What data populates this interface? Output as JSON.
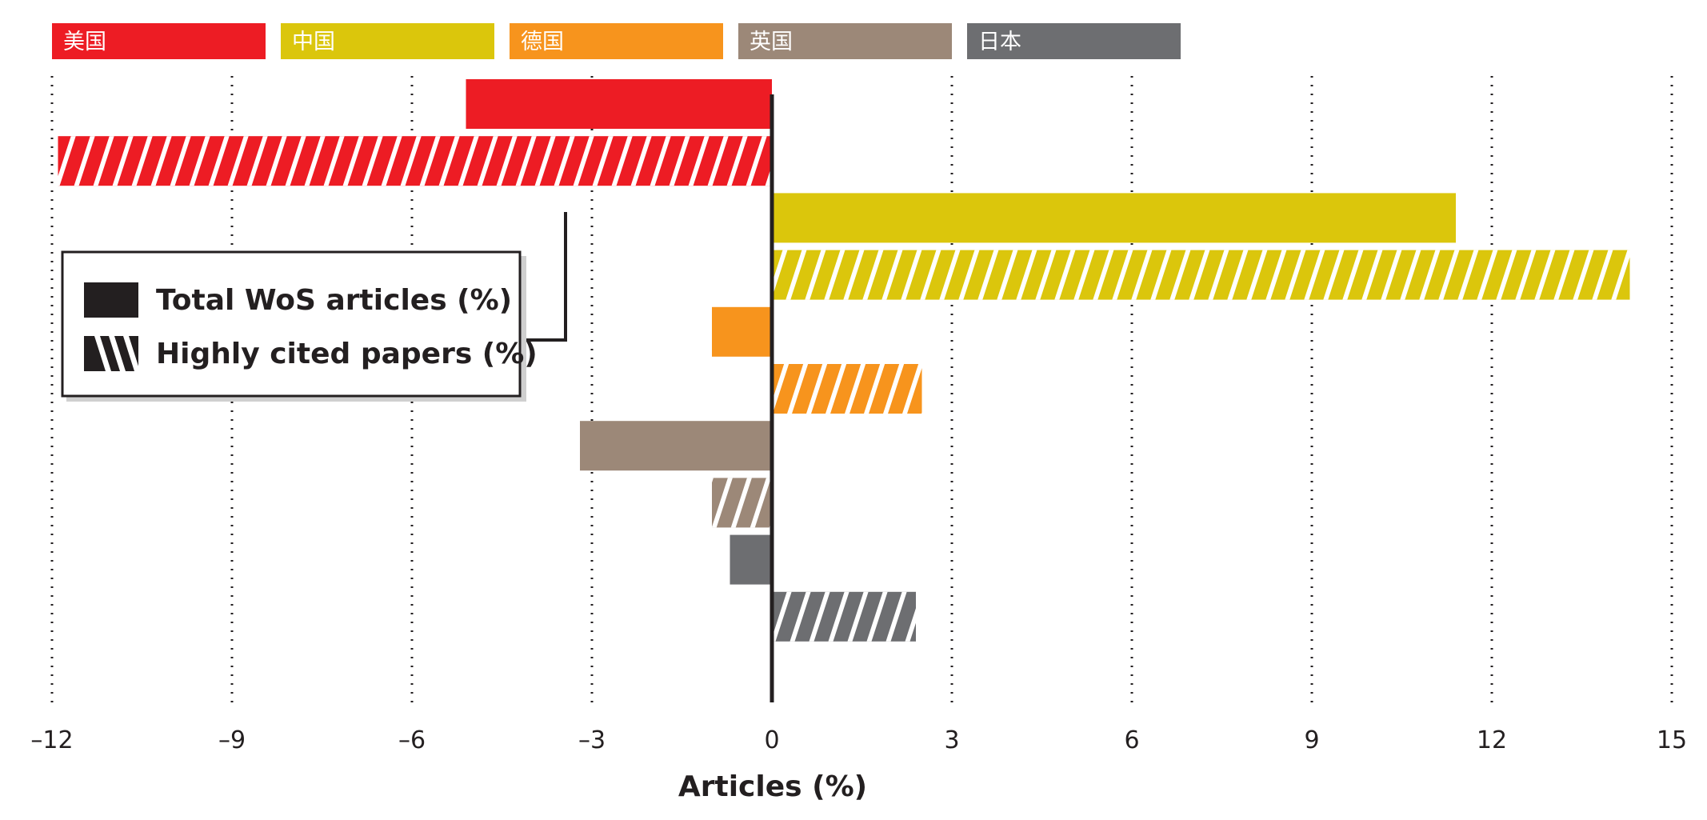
{
  "chart_data": {
    "type": "bar",
    "orientation": "horizontal",
    "xlabel": "Articles (%)",
    "ylabel": "",
    "xlim": [
      -12,
      15
    ],
    "x_ticks": [
      -12,
      -9,
      -6,
      -3,
      0,
      3,
      6,
      9,
      12,
      15
    ],
    "x_tick_labels": [
      "–12",
      "–9",
      "–6",
      "–3",
      "0",
      "3",
      "6",
      "9",
      "12",
      "15"
    ],
    "grid": "vertical dotted",
    "categories": [
      "美国",
      "中国",
      "德国",
      "英国",
      "日本"
    ],
    "colors": [
      "#ed1c24",
      "#dbc60c",
      "#f7941d",
      "#9c8878",
      "#6d6e71"
    ],
    "series": [
      {
        "name": "Total WoS articles (%)",
        "pattern": "solid",
        "values": [
          -5.1,
          11.4,
          -1.0,
          -3.2,
          -0.7
        ]
      },
      {
        "name": "Highly cited papers (%)",
        "pattern": "hatched",
        "values": [
          -11.9,
          14.3,
          2.5,
          -1.0,
          2.4
        ]
      }
    ],
    "legend_position": "left (inside plot area)"
  }
}
